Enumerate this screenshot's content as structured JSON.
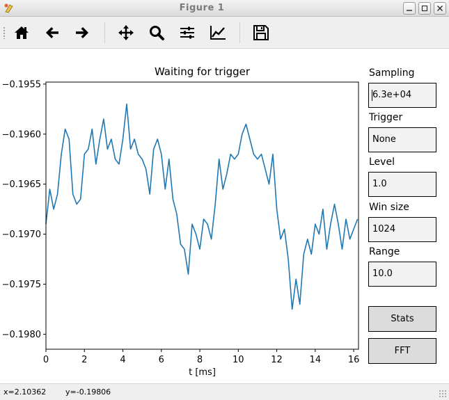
{
  "window": {
    "title": "Figure 1",
    "controls": [
      "minimize",
      "maximize",
      "close"
    ]
  },
  "toolbar": {
    "buttons": [
      {
        "name": "home-icon"
      },
      {
        "name": "back-arrow-icon"
      },
      {
        "name": "forward-arrow-icon"
      },
      {
        "name": "pan-icon"
      },
      {
        "name": "zoom-icon"
      },
      {
        "name": "subplots-icon"
      },
      {
        "name": "edit-curve-icon"
      },
      {
        "name": "save-icon"
      }
    ]
  },
  "side_panel": {
    "sampling": {
      "label": "Sampling",
      "value": "6.3e+04"
    },
    "trigger": {
      "label": "Trigger",
      "value": "None"
    },
    "level": {
      "label": "Level",
      "value": "1.0"
    },
    "win_size": {
      "label": "Win size",
      "value": "1024"
    },
    "range": {
      "label": "Range",
      "value": "10.0"
    },
    "stats_button": "Stats",
    "fft_button": "FFT"
  },
  "status": {
    "x": "x=2.10362",
    "y": "y=-0.19806"
  },
  "colors": {
    "line": "#1f77b4",
    "axes": "#000000",
    "panel_box": "#f2f2f2",
    "button": "#dcdcdc"
  },
  "chart_data": {
    "type": "line",
    "title": "Waiting for trigger",
    "xlabel": "t [ms]",
    "ylabel": "",
    "xlim": [
      0,
      16.25
    ],
    "ylim": [
      -0.19815,
      -0.19548
    ],
    "xticks": [
      0,
      2,
      4,
      6,
      8,
      10,
      12,
      14,
      16
    ],
    "xtick_labels": [
      "0",
      "2",
      "4",
      "6",
      "8",
      "10",
      "12",
      "14",
      "16"
    ],
    "yticks": [
      -0.198,
      -0.1975,
      -0.197,
      -0.1965,
      -0.196,
      -0.1955
    ],
    "ytick_labels": [
      "−0.1980",
      "−0.1975",
      "−0.1970",
      "−0.1965",
      "−0.1960",
      "−0.1955"
    ],
    "grid": false,
    "series": [
      {
        "x": [
          0,
          0.2,
          0.4,
          0.6,
          0.8,
          1.0,
          1.2,
          1.4,
          1.6,
          1.8,
          2.0,
          2.2,
          2.4,
          2.6,
          2.8,
          3.0,
          3.2,
          3.4,
          3.6,
          3.8,
          4.0,
          4.2,
          4.4,
          4.6,
          4.8,
          5.0,
          5.2,
          5.4,
          5.6,
          5.8,
          6.0,
          6.2,
          6.4,
          6.6,
          6.8,
          7.0,
          7.2,
          7.4,
          7.6,
          7.8,
          8.0,
          8.2,
          8.4,
          8.6,
          8.8,
          9.0,
          9.2,
          9.4,
          9.6,
          9.8,
          10.0,
          10.2,
          10.4,
          10.6,
          10.8,
          11.0,
          11.2,
          11.4,
          11.6,
          11.8,
          12.0,
          12.2,
          12.4,
          12.6,
          12.8,
          13.0,
          13.2,
          13.4,
          13.6,
          13.8,
          14.0,
          14.2,
          14.4,
          14.6,
          14.8,
          15.0,
          15.2,
          15.4,
          15.6,
          15.8,
          16.0,
          16.2
        ],
        "values": [
          -0.1969,
          -0.19655,
          -0.19675,
          -0.1966,
          -0.1962,
          -0.19595,
          -0.19605,
          -0.1966,
          -0.1967,
          -0.19665,
          -0.1962,
          -0.19615,
          -0.19595,
          -0.1963,
          -0.19605,
          -0.19585,
          -0.19615,
          -0.19605,
          -0.19625,
          -0.1963,
          -0.19605,
          -0.1957,
          -0.19615,
          -0.19605,
          -0.1962,
          -0.19625,
          -0.19635,
          -0.1966,
          -0.19615,
          -0.19605,
          -0.1962,
          -0.19655,
          -0.19625,
          -0.19665,
          -0.1968,
          -0.1971,
          -0.19715,
          -0.1974,
          -0.1969,
          -0.197,
          -0.19715,
          -0.19685,
          -0.1969,
          -0.19705,
          -0.1967,
          -0.19625,
          -0.19655,
          -0.1964,
          -0.1962,
          -0.19625,
          -0.1962,
          -0.196,
          -0.1959,
          -0.19605,
          -0.1962,
          -0.19625,
          -0.1962,
          -0.19635,
          -0.1965,
          -0.1962,
          -0.19675,
          -0.19705,
          -0.19695,
          -0.19725,
          -0.19775,
          -0.19745,
          -0.1977,
          -0.1972,
          -0.19705,
          -0.1972,
          -0.1969,
          -0.197,
          -0.19675,
          -0.19715,
          -0.1969,
          -0.1967,
          -0.1969,
          -0.19715,
          -0.19685,
          -0.19705,
          -0.19695,
          -0.19685
        ]
      }
    ]
  }
}
